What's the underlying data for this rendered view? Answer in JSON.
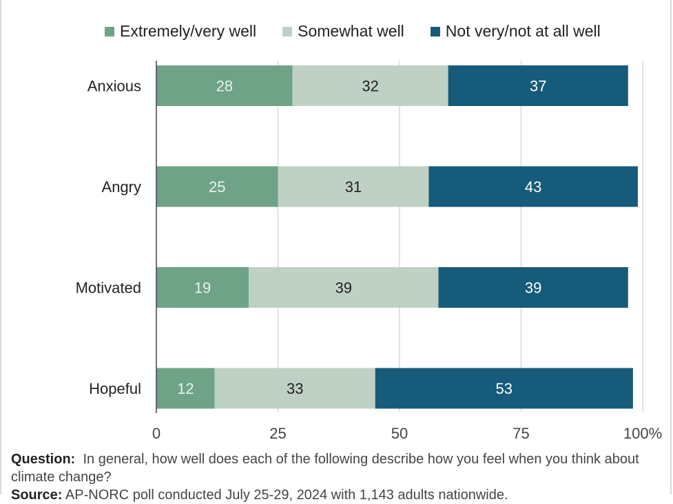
{
  "colors": {
    "extremely": "#6fa387",
    "somewhat": "#bfd0c4",
    "not_very": "#165b7a",
    "grid": "#d9d9d9",
    "axis": "#444444"
  },
  "legend": [
    {
      "label": "Extremely/very well",
      "color": "#6fa387"
    },
    {
      "label": "Somewhat well",
      "color": "#bfd0c4"
    },
    {
      "label": "Not very/not at all well",
      "color": "#165b7a"
    }
  ],
  "footer": {
    "question_label": "Question:",
    "question_text": "In general, how well does each of the following describe how you feel when you think about climate change?",
    "source_label": "Source:",
    "source_text": "AP-NORC poll conducted July 25-29, 2024 with 1,143 adults nationwide."
  },
  "chart_data": {
    "type": "bar",
    "orientation": "horizontal",
    "stacked": true,
    "categories": [
      "Anxious",
      "Angry",
      "Motivated",
      "Hopeful"
    ],
    "series": [
      {
        "name": "Extremely/very well",
        "values": [
          28,
          25,
          19,
          12
        ],
        "color": "#6fa387",
        "label_color": "#e9f2ec"
      },
      {
        "name": "Somewhat well",
        "values": [
          32,
          31,
          39,
          33
        ],
        "color": "#bfd0c4",
        "label_color": "#222222"
      },
      {
        "name": "Not very/not at all well",
        "values": [
          37,
          43,
          39,
          53
        ],
        "color": "#165b7a",
        "label_color": "#ffffff"
      }
    ],
    "xlim": [
      0,
      100
    ],
    "xticks": [
      "0",
      "25",
      "50",
      "75",
      "100%"
    ],
    "xtick_values": [
      0,
      25,
      50,
      75,
      100
    ],
    "grid": true,
    "legend_position": "top"
  }
}
